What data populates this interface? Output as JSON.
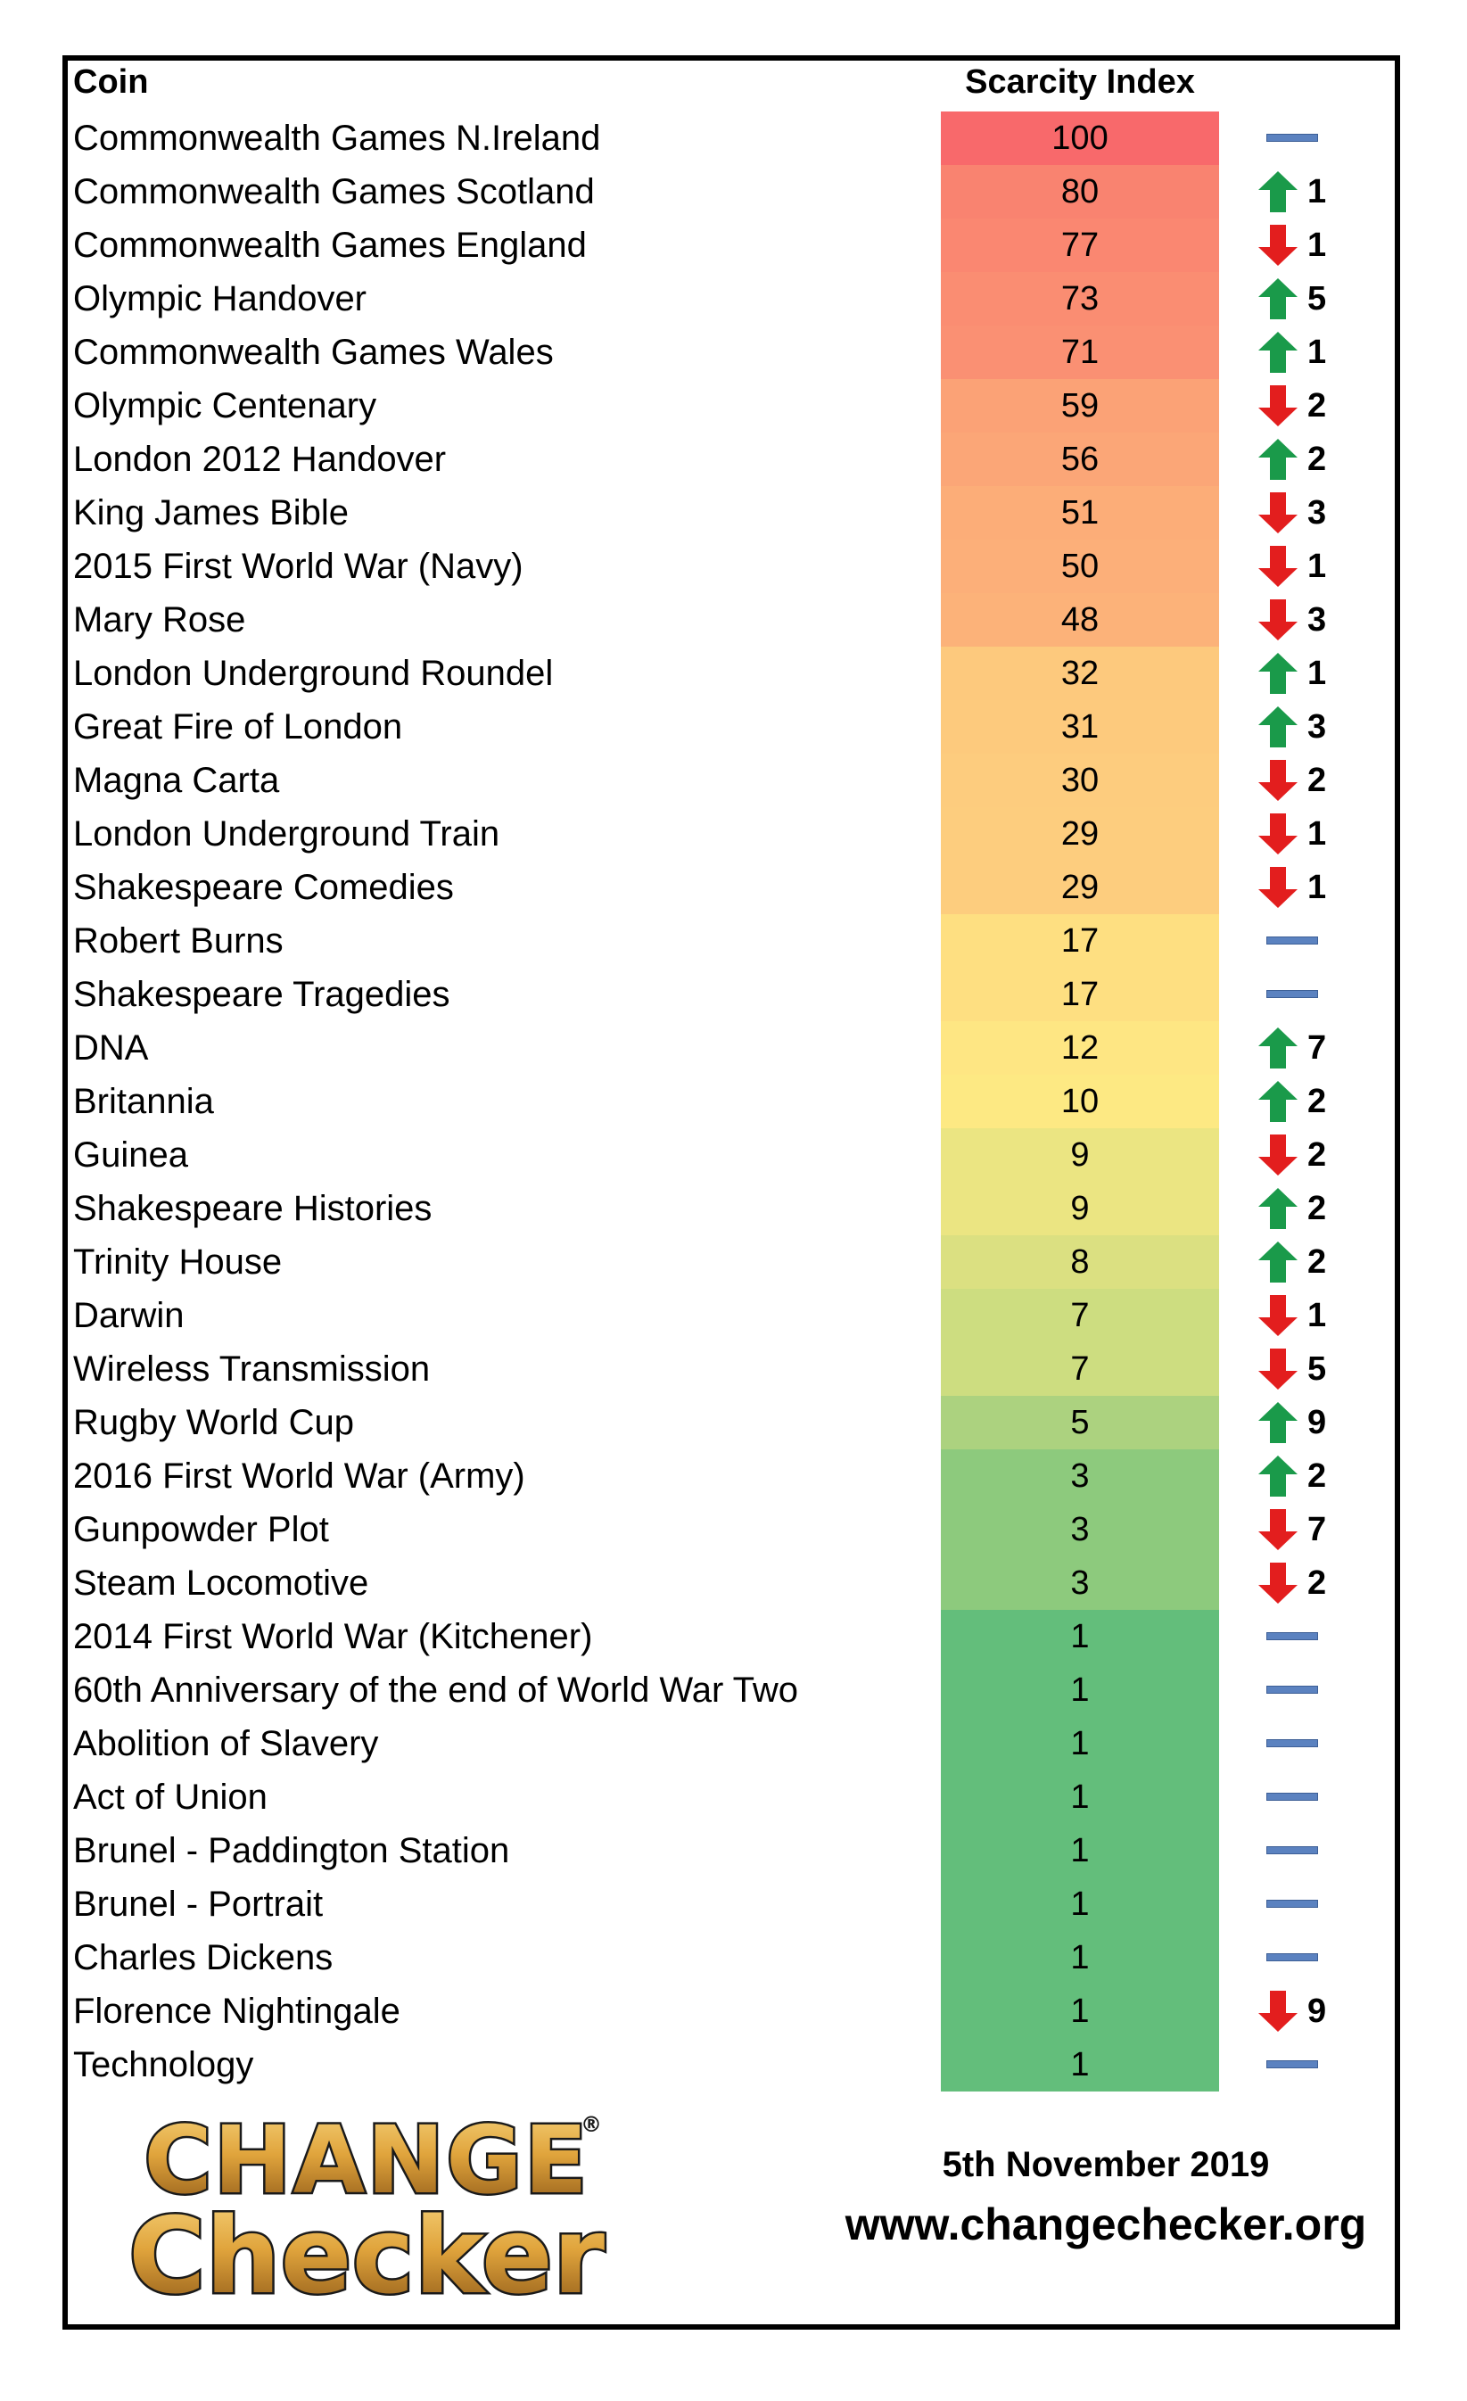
{
  "header": {
    "coin_label": "Coin",
    "index_label": "Scarcity Index"
  },
  "colors": {
    "up": "#1a9a4a",
    "down": "#e31e1e",
    "same": "#5b82c0"
  },
  "rows": [
    {
      "name": "Commonwealth Games N.Ireland",
      "index": "100",
      "dir": "same",
      "change": "",
      "color": "#f8696b"
    },
    {
      "name": "Commonwealth Games Scotland",
      "index": "80",
      "dir": "up",
      "change": "1",
      "color": "#f98370"
    },
    {
      "name": "Commonwealth Games England",
      "index": "77",
      "dir": "down",
      "change": "1",
      "color": "#fa8771"
    },
    {
      "name": "Olympic Handover",
      "index": "73",
      "dir": "up",
      "change": "5",
      "color": "#fa8d72"
    },
    {
      "name": "Commonwealth Games Wales",
      "index": "71",
      "dir": "up",
      "change": "1",
      "color": "#fa9073"
    },
    {
      "name": "Olympic Centenary",
      "index": "59",
      "dir": "down",
      "change": "2",
      "color": "#fba276"
    },
    {
      "name": "London 2012 Handover",
      "index": "56",
      "dir": "up",
      "change": "2",
      "color": "#fba677"
    },
    {
      "name": "King James Bible",
      "index": "51",
      "dir": "down",
      "change": "3",
      "color": "#fcad78"
    },
    {
      "name": "2015 First World War (Navy)",
      "index": "50",
      "dir": "down",
      "change": "1",
      "color": "#fcaf79"
    },
    {
      "name": "Mary Rose",
      "index": "48",
      "dir": "down",
      "change": "3",
      "color": "#fcb279"
    },
    {
      "name": "London Underground Roundel",
      "index": "32",
      "dir": "up",
      "change": "1",
      "color": "#fdc97d"
    },
    {
      "name": "Great Fire of London",
      "index": "31",
      "dir": "up",
      "change": "3",
      "color": "#fdca7d"
    },
    {
      "name": "Magna Carta",
      "index": "30",
      "dir": "down",
      "change": "2",
      "color": "#fdcc7e"
    },
    {
      "name": "London Underground Train",
      "index": "29",
      "dir": "down",
      "change": "1",
      "color": "#fdcd7e"
    },
    {
      "name": "Shakespeare Comedies",
      "index": "29",
      "dir": "down",
      "change": "1",
      "color": "#fdcd7e"
    },
    {
      "name": "Robert Burns",
      "index": "17",
      "dir": "same",
      "change": "",
      "color": "#fedf81"
    },
    {
      "name": "Shakespeare Tragedies",
      "index": "17",
      "dir": "same",
      "change": "",
      "color": "#fedf81"
    },
    {
      "name": "DNA",
      "index": "12",
      "dir": "up",
      "change": "7",
      "color": "#fee683"
    },
    {
      "name": "Britannia",
      "index": "10",
      "dir": "up",
      "change": "2",
      "color": "#fde983"
    },
    {
      "name": "Guinea",
      "index": "9",
      "dir": "down",
      "change": "2",
      "color": "#ebe582"
    },
    {
      "name": "Shakespeare Histories",
      "index": "9",
      "dir": "up",
      "change": "2",
      "color": "#ebe582"
    },
    {
      "name": "Trinity House",
      "index": "8",
      "dir": "up",
      "change": "2",
      "color": "#dbe081"
    },
    {
      "name": "Darwin",
      "index": "7",
      "dir": "down",
      "change": "1",
      "color": "#cddd80"
    },
    {
      "name": "Wireless Transmission",
      "index": "7",
      "dir": "down",
      "change": "5",
      "color": "#cddd80"
    },
    {
      "name": "Rugby World Cup",
      "index": "5",
      "dir": "up",
      "change": "9",
      "color": "#acd27f"
    },
    {
      "name": "2016 First World War (Army)",
      "index": "3",
      "dir": "up",
      "change": "2",
      "color": "#8dca7d"
    },
    {
      "name": "Gunpowder Plot",
      "index": "3",
      "dir": "down",
      "change": "7",
      "color": "#8dca7d"
    },
    {
      "name": "Steam Locomotive",
      "index": "3",
      "dir": "down",
      "change": "2",
      "color": "#8dca7d"
    },
    {
      "name": "2014 First World War (Kitchener)",
      "index": "1",
      "dir": "same",
      "change": "",
      "color": "#63be7b"
    },
    {
      "name": "60th Anniversary of the end of World War Two",
      "index": "1",
      "dir": "same",
      "change": "",
      "color": "#63be7b"
    },
    {
      "name": "Abolition of Slavery",
      "index": "1",
      "dir": "same",
      "change": "",
      "color": "#63be7b"
    },
    {
      "name": "Act of Union",
      "index": "1",
      "dir": "same",
      "change": "",
      "color": "#63be7b"
    },
    {
      "name": "Brunel - Paddington Station",
      "index": "1",
      "dir": "same",
      "change": "",
      "color": "#63be7b"
    },
    {
      "name": "Brunel - Portrait",
      "index": "1",
      "dir": "same",
      "change": "",
      "color": "#63be7b"
    },
    {
      "name": "Charles Dickens",
      "index": "1",
      "dir": "same",
      "change": "",
      "color": "#63be7b"
    },
    {
      "name": "Florence Nightingale",
      "index": "1",
      "dir": "down",
      "change": "9",
      "color": "#63be7b"
    },
    {
      "name": "Technology",
      "index": "1",
      "dir": "same",
      "change": "",
      "color": "#63be7b"
    }
  ],
  "footer": {
    "date": "5th November 2019",
    "url": "www.changechecker.org",
    "logo_line1": "CHANGE",
    "logo_line2": "Checker",
    "registered_mark": "®"
  }
}
